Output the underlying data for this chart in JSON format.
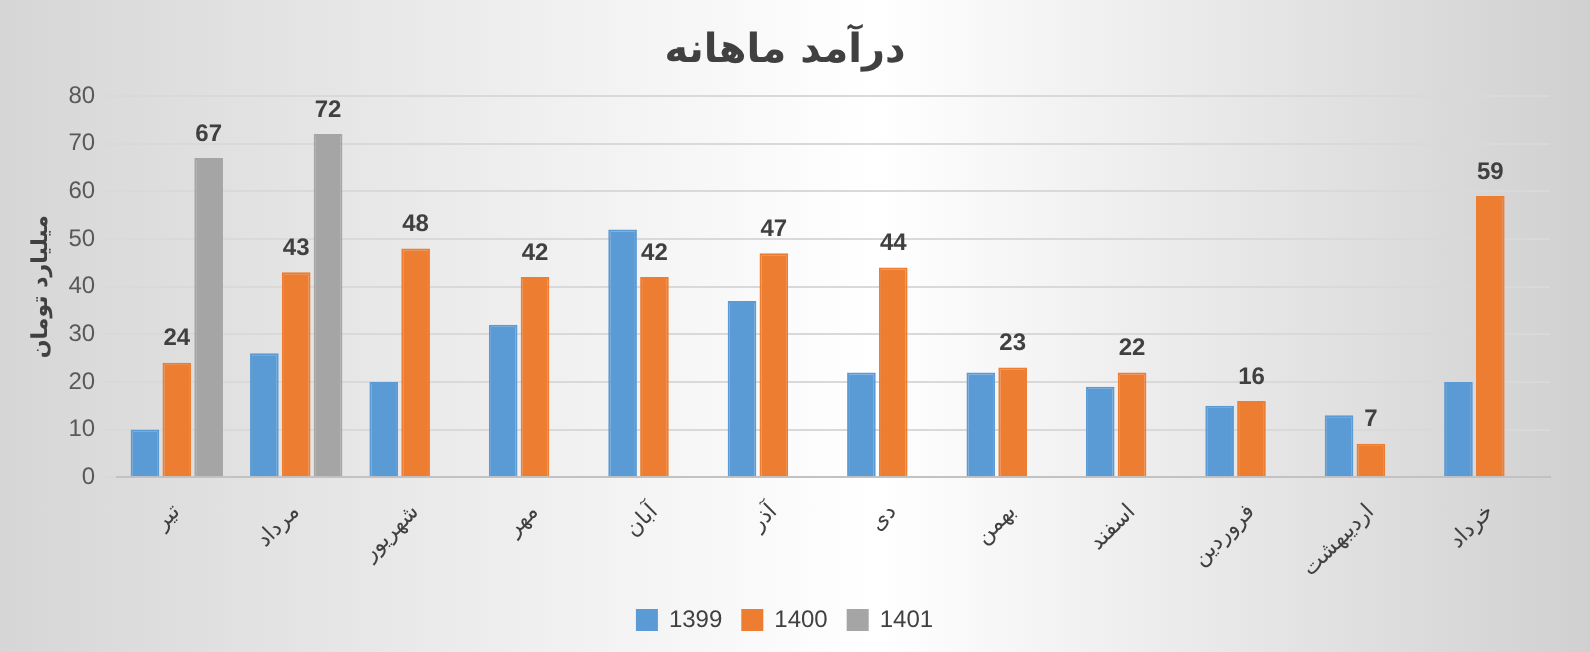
{
  "chart_data": {
    "type": "bar",
    "title": "درآمد ماهانه",
    "ylabel": "میلیارد تومان",
    "categories": [
      "تیر",
      "مرداد",
      "شهریور",
      "مهر",
      "آبان",
      "آذر",
      "دی",
      "بهمن",
      "اسفند",
      "فروردین",
      "اردیبهشت",
      "خرداد"
    ],
    "series": [
      {
        "name": "1399",
        "color": "#5b9bd5",
        "values": [
          10,
          26,
          20,
          32,
          52,
          37,
          22,
          22,
          19,
          15,
          13,
          20
        ]
      },
      {
        "name": "1400",
        "color": "#ed7d31",
        "values": [
          24,
          43,
          48,
          42,
          42,
          47,
          44,
          23,
          22,
          16,
          7,
          59
        ],
        "value_labels": [
          "24",
          "43",
          "48",
          "42",
          "42",
          "47",
          "44",
          "23",
          "22",
          "16",
          "7",
          "59"
        ]
      },
      {
        "name": "1401",
        "color": "#a5a5a5",
        "values": [
          67,
          72,
          null,
          null,
          null,
          null,
          null,
          null,
          null,
          null,
          null,
          null
        ],
        "value_labels": [
          "67",
          "72",
          null,
          null,
          null,
          null,
          null,
          null,
          null,
          null,
          null,
          null
        ]
      }
    ],
    "ylim": [
      0,
      80
    ],
    "yticks": [
      0,
      10,
      20,
      30,
      40,
      50,
      60,
      70,
      80
    ],
    "grid": "y",
    "legend": "bottom"
  }
}
